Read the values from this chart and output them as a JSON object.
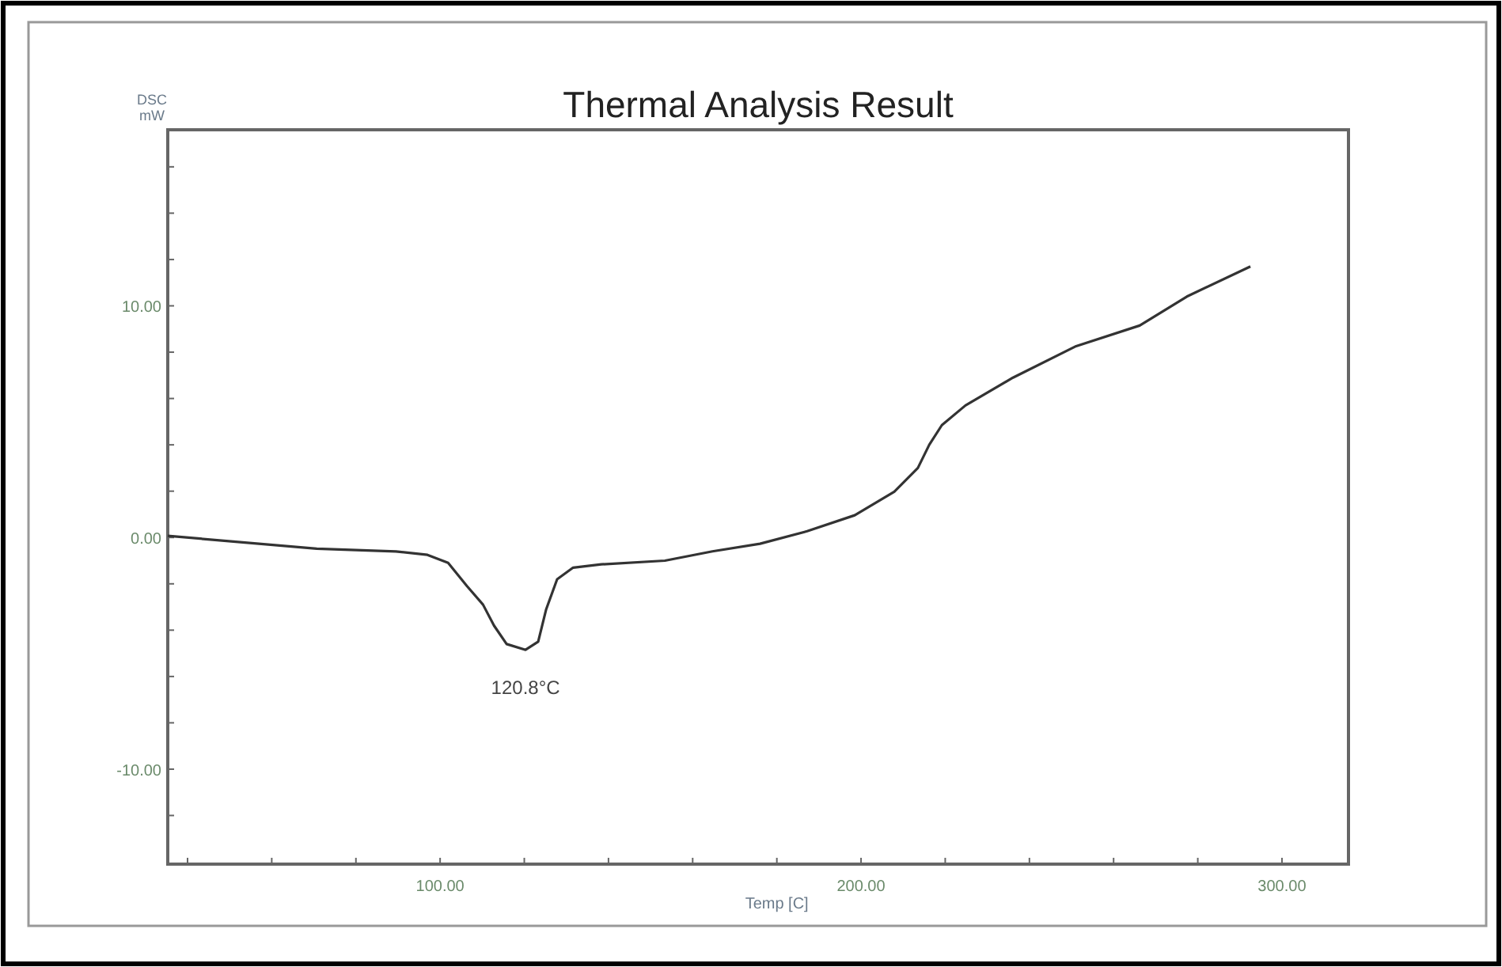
{
  "chart_data": {
    "type": "line",
    "title": "Thermal Analysis Result",
    "xlabel": "Temp [C]",
    "ylabel": "DSC\nmW",
    "x": [
      35.3,
      70.7,
      89.5,
      97,
      101.9,
      106.4,
      110.2,
      112.8,
      115.8,
      120.3,
      123.3,
      125.2,
      127.8,
      131.6,
      138.3,
      153.4,
      164.7,
      176,
      187.2,
      198.5,
      207.9,
      213.5,
      216.2,
      219.2,
      224.8,
      236.1,
      251.1,
      266.2,
      277.4,
      292.5
    ],
    "series": [
      {
        "color": "#333333",
        "values": [
          0.07,
          -0.48,
          -0.6,
          -0.75,
          -1.09,
          -2.1,
          -2.9,
          -3.8,
          -4.6,
          -4.85,
          -4.5,
          -3.1,
          -1.8,
          -1.3,
          -1.16,
          -1.0,
          -0.6,
          -0.27,
          0.27,
          0.96,
          1.98,
          3.0,
          4.0,
          4.85,
          5.7,
          6.9,
          8.26,
          9.15,
          10.4,
          11.7
        ]
      }
    ],
    "annotations": [
      {
        "text": "120.8°C",
        "x": 120.3,
        "y": -4.85
      }
    ],
    "xlim": [
      35.3,
      315.8
    ],
    "ylim": [
      -14.1,
      17.6
    ],
    "xticks": [
      {
        "value": 40,
        "label": null
      },
      {
        "value": 60,
        "label": null
      },
      {
        "value": 80,
        "label": null
      },
      {
        "value": 100,
        "label": "100.00"
      },
      {
        "value": 120,
        "label": null
      },
      {
        "value": 140,
        "label": null
      },
      {
        "value": 160,
        "label": null
      },
      {
        "value": 180,
        "label": null
      },
      {
        "value": 200,
        "label": "200.00"
      },
      {
        "value": 220,
        "label": null
      },
      {
        "value": 240,
        "label": null
      },
      {
        "value": 260,
        "label": null
      },
      {
        "value": 280,
        "label": null
      },
      {
        "value": 300,
        "label": "300.00"
      }
    ],
    "yticks": [
      {
        "value": -12,
        "label": null
      },
      {
        "value": -10,
        "label": "-10.00"
      },
      {
        "value": -8,
        "label": null
      },
      {
        "value": -6,
        "label": null
      },
      {
        "value": -4,
        "label": null
      },
      {
        "value": -2,
        "label": null
      },
      {
        "value": 0,
        "label": "0.00"
      },
      {
        "value": 2,
        "label": null
      },
      {
        "value": 4,
        "label": null
      },
      {
        "value": 6,
        "label": null
      },
      {
        "value": 8,
        "label": null
      },
      {
        "value": 10,
        "label": "10.00"
      },
      {
        "value": 12,
        "label": null
      },
      {
        "value": 14,
        "label": null
      },
      {
        "value": 16,
        "label": null
      }
    ],
    "grid": false,
    "marker": "none",
    "line_style": "solid"
  }
}
